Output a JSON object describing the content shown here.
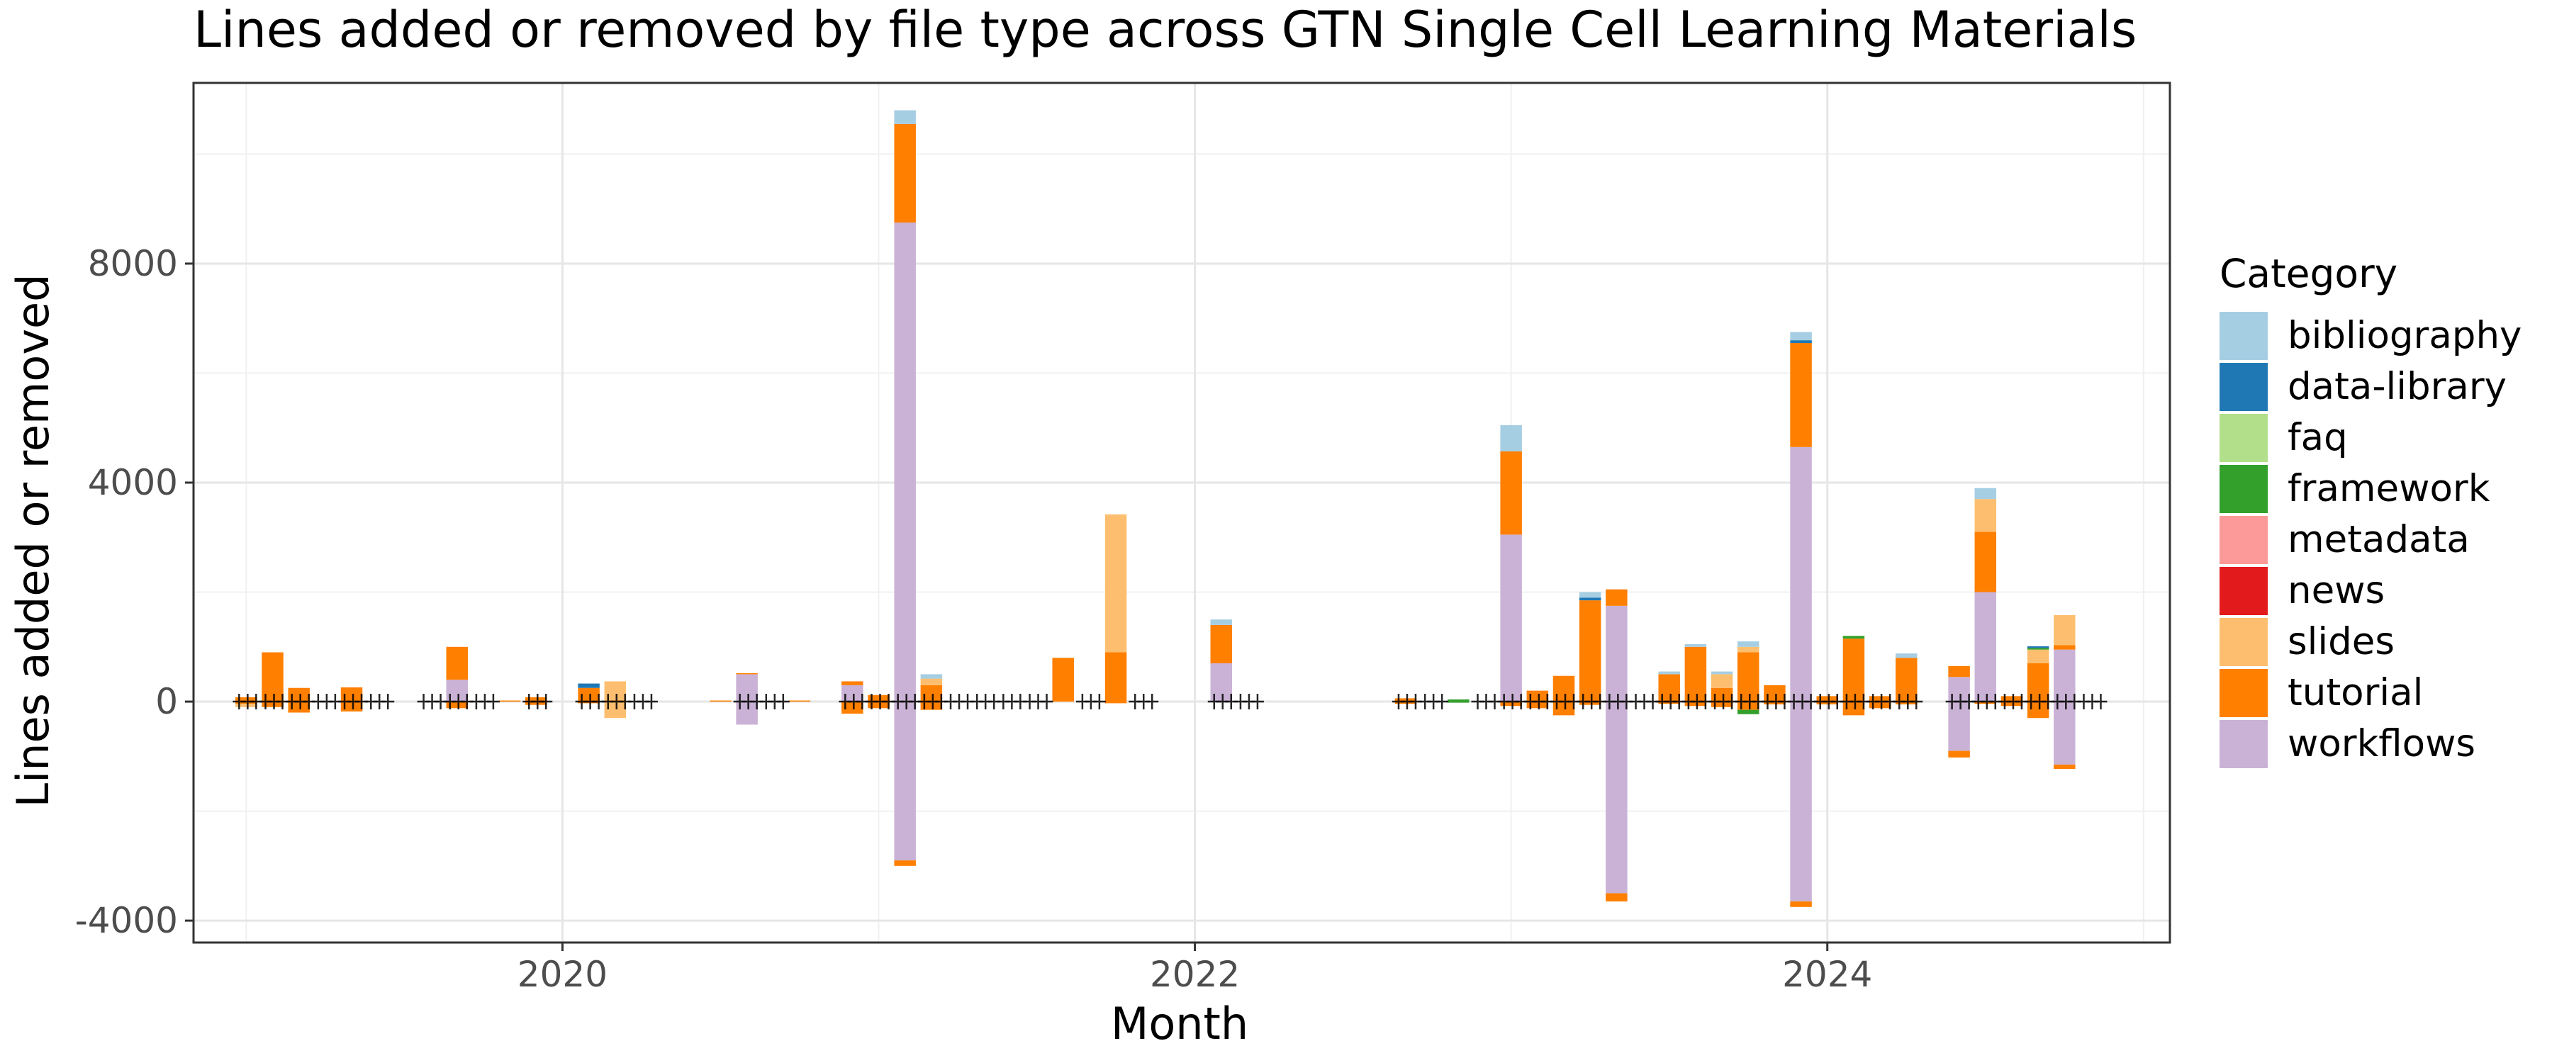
{
  "chart_data": {
    "type": "bar",
    "title": "Lines added or removed by file type across GTN Single Cell Learning Materials",
    "xlabel": "Month",
    "ylabel": "Lines added or removed",
    "x_ticks": [
      "2020",
      "2022",
      "2024"
    ],
    "x_tick_values": [
      "2020-01",
      "2022-01",
      "2024-01"
    ],
    "y_ticks": [
      -4000,
      0,
      4000,
      8000
    ],
    "y_tick_labels": [
      "-4000",
      "0",
      "4000",
      "8000"
    ],
    "xlim": [
      "2018-11",
      "2025-02"
    ],
    "ylim": [
      -4400,
      11300
    ],
    "grid": true,
    "legend": {
      "title": "Category",
      "position": "right",
      "entries": [
        "bibliography",
        "data-library",
        "faq",
        "framework",
        "metadata",
        "news",
        "slides",
        "tutorial",
        "workflows"
      ]
    },
    "colors": {
      "bibliography": "#a6cee3",
      "data-library": "#1f78b4",
      "faq": "#b2df8a",
      "framework": "#33a02c",
      "metadata": "#fb9a99",
      "news": "#e31a1c",
      "slides": "#fdbf6f",
      "tutorial": "#ff7f00",
      "workflows": "#cab2d6"
    },
    "stack_order": [
      "workflows",
      "tutorial",
      "slides",
      "news",
      "metadata",
      "framework",
      "faq",
      "data-library",
      "bibliography"
    ],
    "bars": [
      {
        "month": "2019-01",
        "added": {
          "tutorial": 80
        },
        "removed": {
          "slides": 60,
          "tutorial": 40
        }
      },
      {
        "month": "2019-02",
        "added": {
          "tutorial": 900
        },
        "removed": {
          "tutorial": 100
        }
      },
      {
        "month": "2019-03",
        "added": {
          "tutorial": 250
        },
        "removed": {
          "tutorial": 200
        }
      },
      {
        "month": "2019-05",
        "added": {
          "tutorial": 260
        },
        "removed": {
          "tutorial": 180
        }
      },
      {
        "month": "2019-09",
        "added": {
          "workflows": 400,
          "tutorial": 600
        },
        "removed": {
          "tutorial": 120
        }
      },
      {
        "month": "2019-11",
        "added": {
          "tutorial": 20
        },
        "removed": {}
      },
      {
        "month": "2019-12",
        "added": {
          "tutorial": 80
        },
        "removed": {
          "tutorial": 60
        }
      },
      {
        "month": "2020-02",
        "added": {
          "tutorial": 250,
          "data-library": 80
        },
        "removed": {
          "tutorial": 30
        }
      },
      {
        "month": "2020-03",
        "added": {
          "tutorial": 20,
          "slides": 350
        },
        "removed": {
          "slides": 300
        }
      },
      {
        "month": "2020-07",
        "added": {
          "tutorial": 20
        },
        "removed": {}
      },
      {
        "month": "2020-08",
        "added": {
          "workflows": 500,
          "tutorial": 20
        },
        "removed": {
          "workflows": 420
        }
      },
      {
        "month": "2020-10",
        "added": {
          "tutorial": 20
        },
        "removed": {}
      },
      {
        "month": "2020-12",
        "added": {
          "workflows": 300,
          "tutorial": 70
        },
        "removed": {
          "tutorial": 220
        }
      },
      {
        "month": "2021-01",
        "added": {
          "tutorial": 120
        },
        "removed": {
          "tutorial": 120
        }
      },
      {
        "month": "2021-02",
        "added": {
          "workflows": 8750,
          "tutorial": 1800,
          "bibliography": 250
        },
        "removed": {
          "workflows": 2900,
          "tutorial": 100
        }
      },
      {
        "month": "2021-03",
        "added": {
          "tutorial": 300,
          "slides": 120,
          "bibliography": 80
        },
        "removed": {
          "tutorial": 150
        }
      },
      {
        "month": "2021-08",
        "added": {
          "tutorial": 800
        },
        "removed": {}
      },
      {
        "month": "2021-10",
        "added": {
          "tutorial": 900,
          "slides": 2520
        },
        "removed": {
          "tutorial": 30
        }
      },
      {
        "month": "2022-02",
        "added": {
          "workflows": 700,
          "tutorial": 700,
          "bibliography": 100
        },
        "removed": {}
      },
      {
        "month": "2022-09",
        "added": {
          "tutorial": 60
        },
        "removed": {
          "tutorial": 40
        }
      },
      {
        "month": "2022-11",
        "added": {
          "framework": 40
        },
        "removed": {
          "framework": 20
        }
      },
      {
        "month": "2023-01",
        "added": {
          "workflows": 3050,
          "tutorial": 1520,
          "bibliography": 480
        },
        "removed": {
          "tutorial": 80
        }
      },
      {
        "month": "2023-02",
        "added": {
          "tutorial": 200
        },
        "removed": {
          "tutorial": 120
        }
      },
      {
        "month": "2023-03",
        "added": {
          "tutorial": 470
        },
        "removed": {
          "tutorial": 250
        }
      },
      {
        "month": "2023-04",
        "added": {
          "tutorial": 1850,
          "data-library": 50,
          "bibliography": 100
        },
        "removed": {
          "tutorial": 60
        }
      },
      {
        "month": "2023-05",
        "added": {
          "workflows": 1750,
          "tutorial": 300
        },
        "removed": {
          "workflows": 3500,
          "tutorial": 150
        }
      },
      {
        "month": "2023-07",
        "added": {
          "tutorial": 500,
          "bibliography": 50
        },
        "removed": {
          "tutorial": 40
        }
      },
      {
        "month": "2023-08",
        "added": {
          "tutorial": 1000,
          "bibliography": 50
        },
        "removed": {
          "tutorial": 80
        }
      },
      {
        "month": "2023-09",
        "added": {
          "tutorial": 250,
          "slides": 250,
          "bibliography": 50
        },
        "removed": {
          "tutorial": 100
        }
      },
      {
        "month": "2023-10",
        "added": {
          "tutorial": 900,
          "slides": 100,
          "bibliography": 100
        },
        "removed": {
          "tutorial": 150,
          "framework": 80
        }
      },
      {
        "month": "2023-11",
        "added": {
          "tutorial": 300
        },
        "removed": {
          "tutorial": 50
        }
      },
      {
        "month": "2023-12",
        "added": {
          "workflows": 4650,
          "tutorial": 1900,
          "data-library": 50,
          "bibliography": 150
        },
        "removed": {
          "workflows": 3650,
          "tutorial": 100
        }
      },
      {
        "month": "2024-01",
        "added": {
          "tutorial": 100
        },
        "removed": {
          "tutorial": 50
        }
      },
      {
        "month": "2024-02",
        "added": {
          "tutorial": 1150,
          "framework": 50
        },
        "removed": {
          "tutorial": 250
        }
      },
      {
        "month": "2024-03",
        "added": {
          "tutorial": 100
        },
        "removed": {
          "tutorial": 120
        }
      },
      {
        "month": "2024-04",
        "added": {
          "tutorial": 800,
          "bibliography": 80
        },
        "removed": {
          "tutorial": 50
        }
      },
      {
        "month": "2024-06",
        "added": {
          "workflows": 450,
          "tutorial": 200
        },
        "removed": {
          "workflows": 900,
          "tutorial": 120
        }
      },
      {
        "month": "2024-07",
        "added": {
          "workflows": 2000,
          "tutorial": 1100,
          "slides": 600,
          "bibliography": 200
        },
        "removed": {
          "tutorial": 40
        }
      },
      {
        "month": "2024-08",
        "added": {
          "tutorial": 100
        },
        "removed": {
          "tutorial": 80
        }
      },
      {
        "month": "2024-09",
        "added": {
          "tutorial": 700,
          "slides": 250,
          "framework": 30,
          "data-library": 30
        },
        "removed": {
          "tutorial": 300
        }
      },
      {
        "month": "2024-10",
        "added": {
          "workflows": 950,
          "tutorial": 80,
          "slides": 550
        },
        "removed": {
          "workflows": 1150,
          "tutorial": 80
        }
      }
    ],
    "commit_markers": [
      "2019-01",
      "2019-02",
      "2019-03",
      "2019-04",
      "2019-05",
      "2019-06",
      "2019-08",
      "2019-09",
      "2019-10",
      "2019-12",
      "2020-02",
      "2020-03",
      "2020-04",
      "2020-08",
      "2020-09",
      "2020-12",
      "2021-01",
      "2021-02",
      "2021-03",
      "2021-04",
      "2021-05",
      "2021-06",
      "2021-07",
      "2021-09",
      "2021-11",
      "2022-02",
      "2022-03",
      "2022-09",
      "2022-10",
      "2022-12",
      "2023-01",
      "2023-02",
      "2023-03",
      "2023-04",
      "2023-05",
      "2023-06",
      "2023-07",
      "2023-08",
      "2023-09",
      "2023-10",
      "2023-11",
      "2023-12",
      "2024-01",
      "2024-02",
      "2024-03",
      "2024-04",
      "2024-06",
      "2024-07",
      "2024-08",
      "2024-09",
      "2024-10",
      "2024-11"
    ]
  }
}
